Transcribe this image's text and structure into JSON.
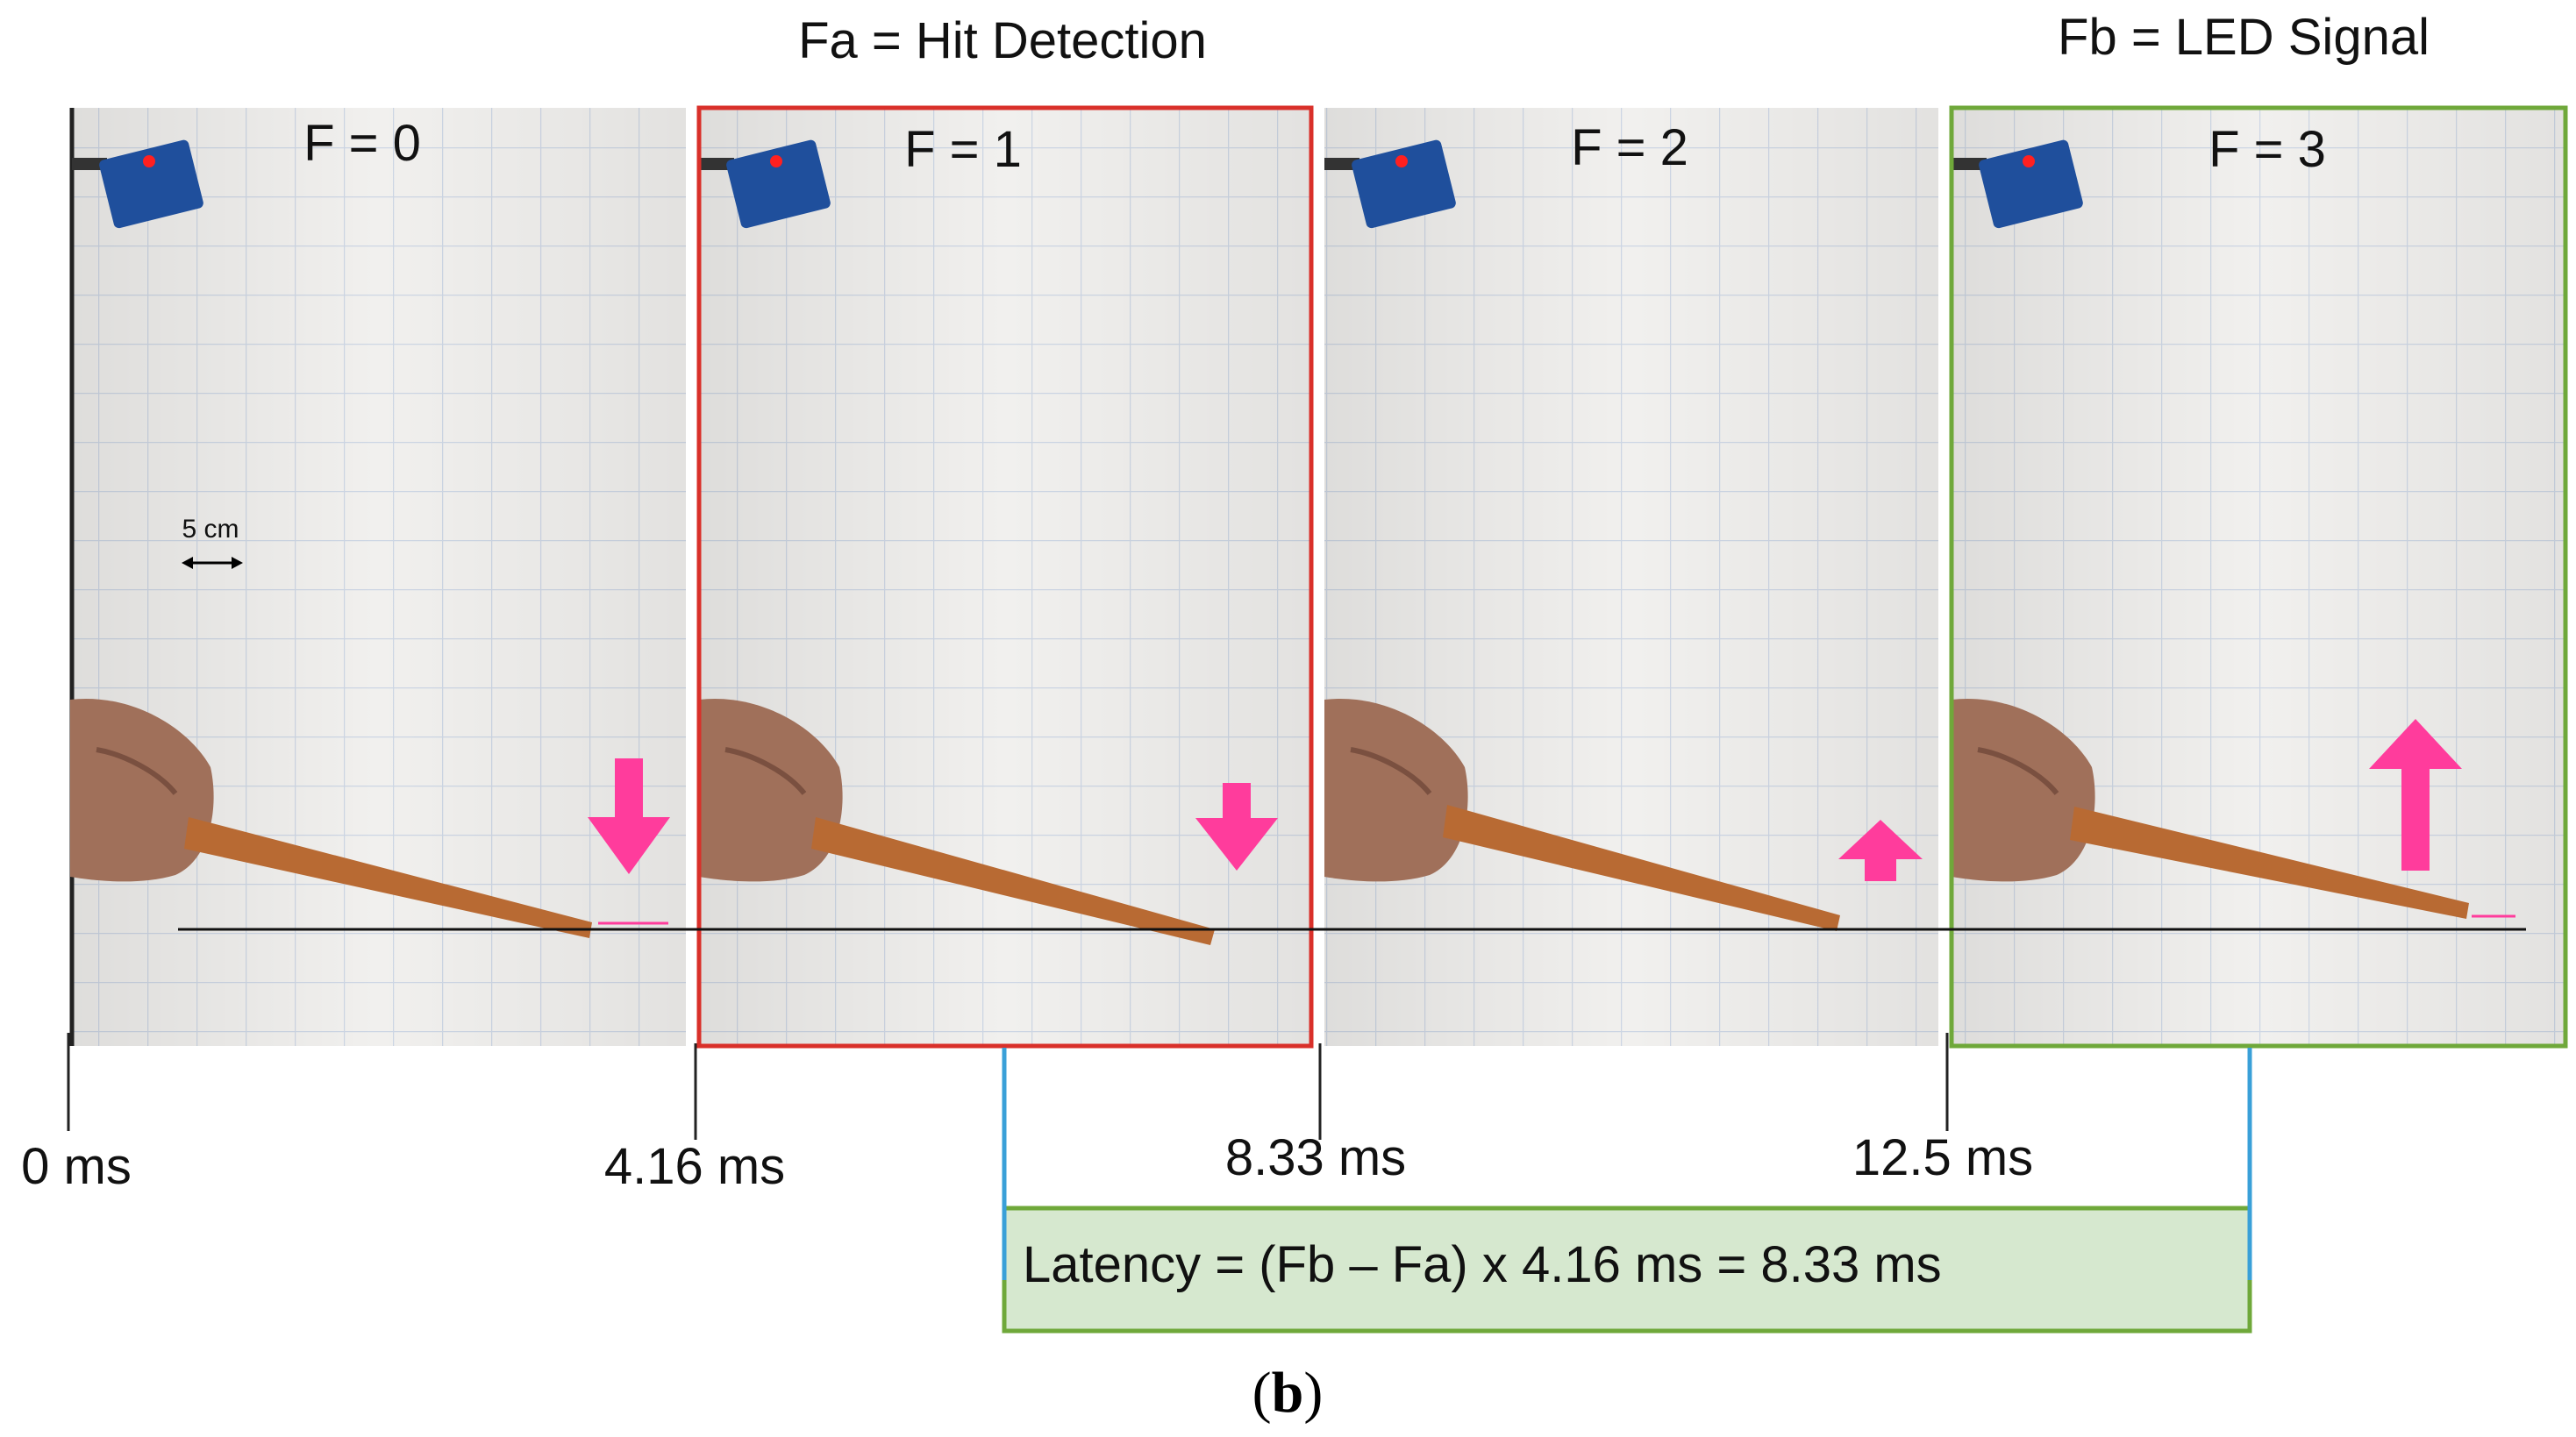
{
  "header": {
    "fa_label": "Fa = Hit Detection",
    "fb_label": "Fb = LED Signal"
  },
  "frames": [
    {
      "label": "F = 0",
      "arrow": "down",
      "highlight": "none"
    },
    {
      "label": "F = 1",
      "arrow": "down",
      "highlight": "red"
    },
    {
      "label": "F = 2",
      "arrow": "up",
      "highlight": "none"
    },
    {
      "label": "F = 3",
      "arrow": "up",
      "highlight": "green"
    }
  ],
  "scale": {
    "label": "5 cm"
  },
  "timeline": {
    "ticks": [
      "0 ms",
      "4.16 ms",
      "8.33 ms",
      "12.5 ms"
    ]
  },
  "latency": {
    "formula": "Latency = (Fb – Fa)  x 4.16 ms = 8.33 ms"
  },
  "caption": {
    "open": "(",
    "letter": "b",
    "close": ")"
  },
  "colors": {
    "red_frame": "#d9302a",
    "green_frame": "#6fa83a",
    "blue_bracket": "#3aa0d8",
    "arrow_pink": "#ff3c9c",
    "latency_box_fill": "#d6e8cf",
    "grid_line": "#cdd6e4",
    "board_bg": "#f1f0ee",
    "stick": "#b86a33",
    "hand": "#a0705a"
  }
}
